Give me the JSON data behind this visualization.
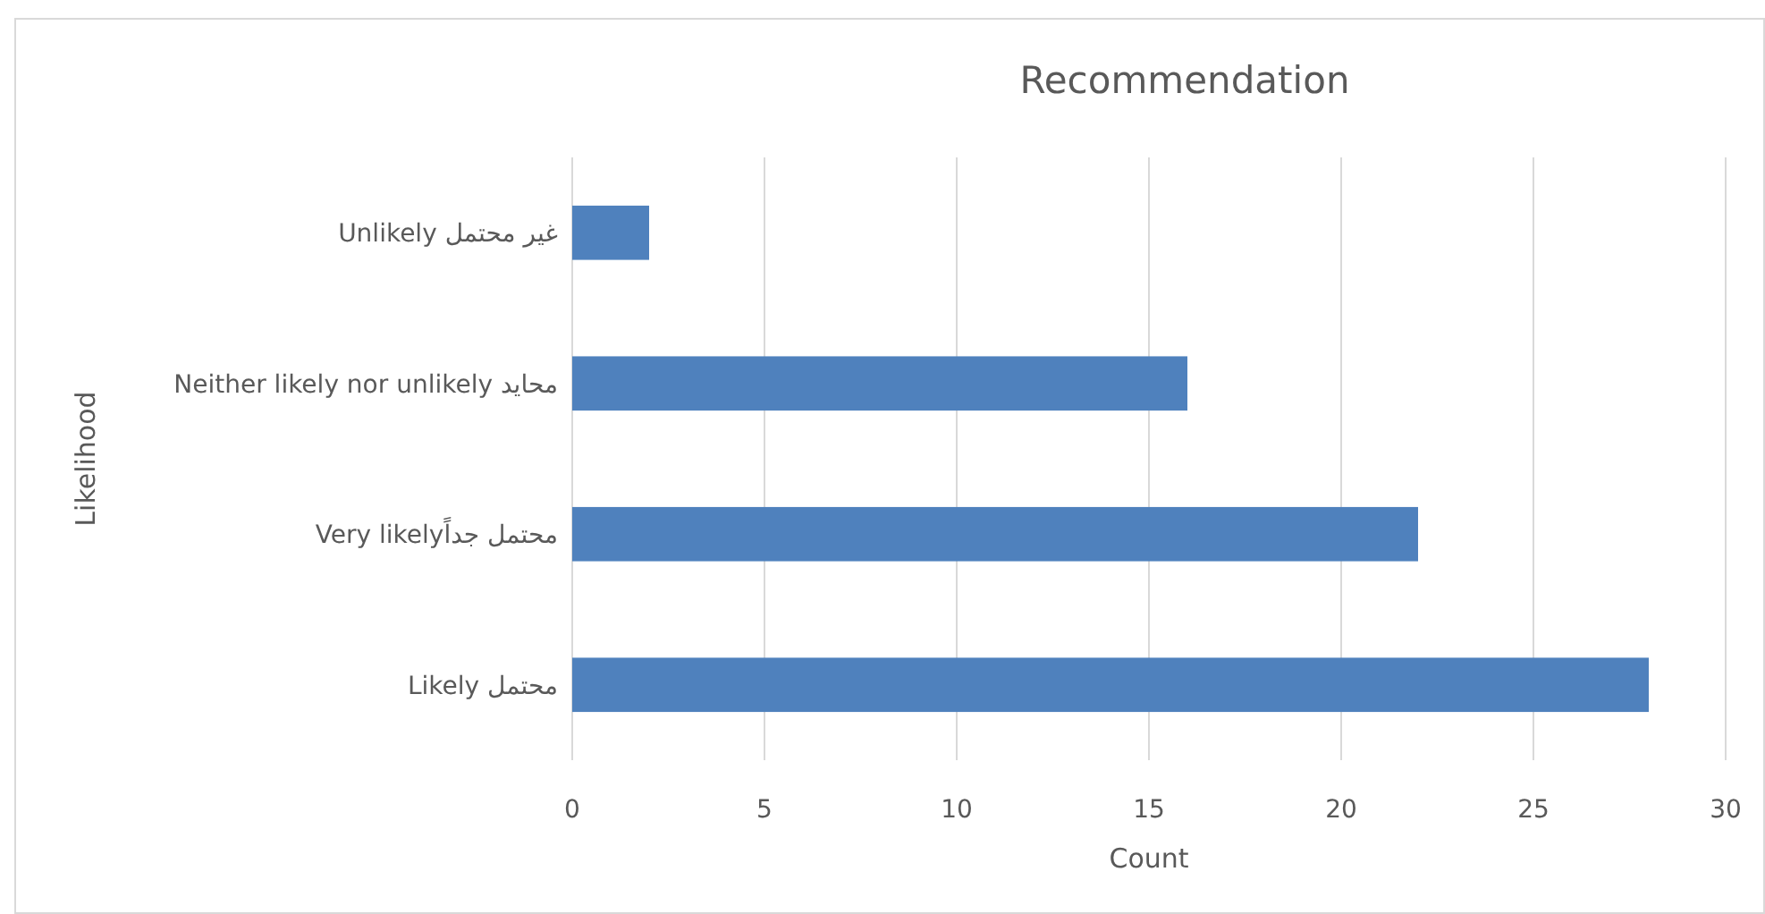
{
  "chart_data": {
    "type": "bar",
    "orientation": "horizontal",
    "title": "Recommendation",
    "xlabel": "Count",
    "ylabel": "Likelihood",
    "categories": [
      "Unlikely غير محتمل",
      "Neither likely nor unlikely محايد",
      "Very likelyمحتمل جداً",
      "Likely محتمل"
    ],
    "values": [
      2,
      16,
      22,
      28
    ],
    "color": "#4f81bd",
    "xlim": [
      0,
      30
    ],
    "xticks": [
      0,
      5,
      10,
      15,
      20,
      25,
      30
    ],
    "grid": "x"
  }
}
